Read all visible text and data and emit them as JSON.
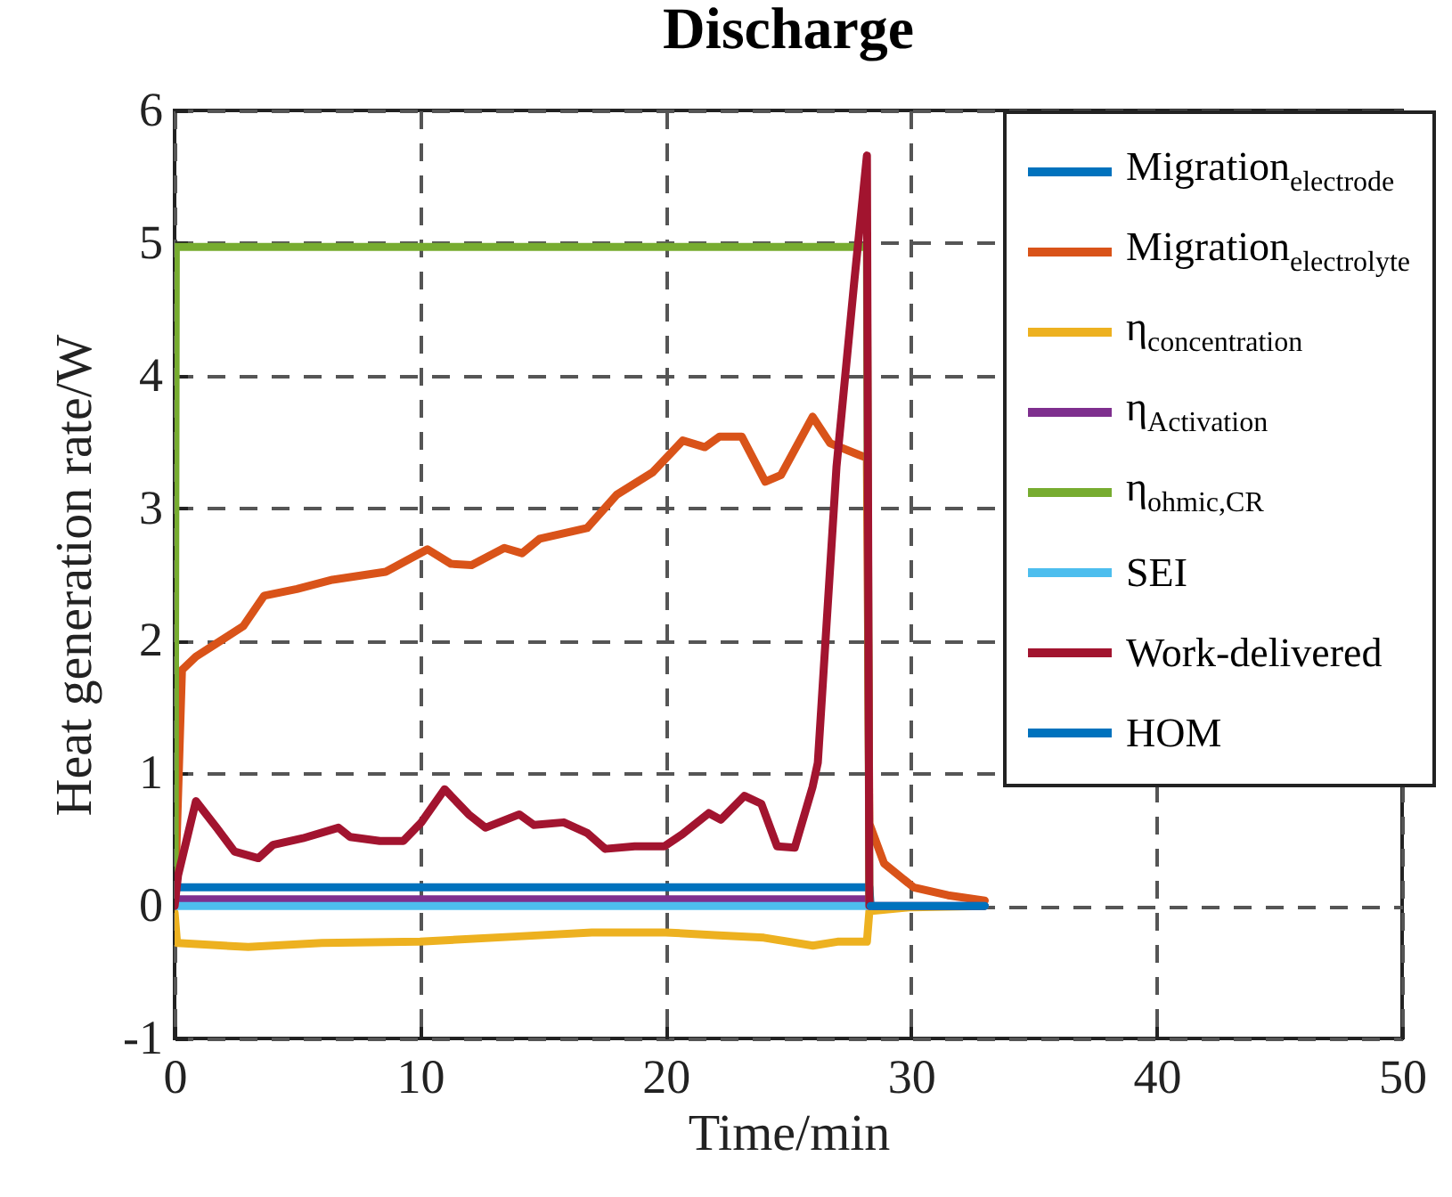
{
  "chart_data": {
    "type": "line",
    "title": "Discharge",
    "xlabel": "Time/min",
    "ylabel": "Heat generation rate/W",
    "xlim": [
      0,
      50
    ],
    "xticks": [
      0,
      10,
      20,
      30,
      40,
      50
    ],
    "ylim": [
      -1,
      6
    ],
    "yticks": [
      -1,
      0,
      1,
      2,
      3,
      4,
      5,
      6
    ],
    "grid": true,
    "legend": "top right",
    "marker": "none",
    "line_style": "solid",
    "series": [
      {
        "name": "Migration$_{electrode}$",
        "color": "#0072bd",
        "x": [
          0,
          0.05,
          28.3,
          28.35
        ],
        "values": [
          0,
          0.14,
          0.14,
          0
        ]
      },
      {
        "name": "Migration$_{electrolyte}$",
        "color": "#d95319",
        "x": [
          0,
          0.3,
          0.87,
          1.71,
          2.8,
          3.65,
          4.98,
          6.43,
          8.6,
          10.3,
          11.26,
          12.1,
          13.43,
          14.15,
          14.88,
          16.8,
          18.0,
          19.47,
          20.7,
          21.6,
          22.2,
          23.1,
          24.06,
          24.7,
          25.99,
          26.7,
          27.9,
          28.2,
          28.3,
          28.9,
          30.1,
          31.5,
          33.0
        ],
        "values": [
          0,
          1.78,
          1.88,
          1.98,
          2.11,
          2.34,
          2.39,
          2.46,
          2.52,
          2.69,
          2.58,
          2.57,
          2.7,
          2.66,
          2.77,
          2.85,
          3.1,
          3.27,
          3.51,
          3.46,
          3.54,
          3.54,
          3.2,
          3.25,
          3.69,
          3.49,
          3.4,
          3.38,
          0.62,
          0.32,
          0.14,
          0.08,
          0.04
        ]
      },
      {
        "name": "η$_{concentration}$",
        "color": "#edb120",
        "x": [
          0,
          0.1,
          3,
          6,
          10,
          14,
          17,
          20,
          22,
          24,
          26,
          27,
          28.2,
          28.3,
          30,
          33
        ],
        "values": [
          -0.05,
          -0.28,
          -0.31,
          -0.28,
          -0.27,
          -0.23,
          -0.2,
          -0.2,
          -0.22,
          -0.24,
          -0.3,
          -0.27,
          -0.27,
          -0.04,
          -0.01,
          0
        ]
      },
      {
        "name": "η$_{Activation}$",
        "color": "#7e2f8e",
        "x": [
          0,
          0.05,
          28.3,
          28.35,
          33
        ],
        "values": [
          0,
          0.05,
          0.05,
          0,
          0
        ]
      },
      {
        "name": "η$_{ohmic,CR}$",
        "color": "#77ac30",
        "x": [
          0,
          0.05,
          28.2,
          28.3
        ],
        "values": [
          0,
          4.97,
          4.97,
          0
        ]
      },
      {
        "name": "SEI",
        "color": "#4dbeee",
        "x": [
          0,
          28.35
        ],
        "values": [
          0,
          0
        ]
      },
      {
        "name": "Work-delivered",
        "color": "#a2142f",
        "x": [
          0,
          0.14,
          0.87,
          1.71,
          2.44,
          3.41,
          4.01,
          5.22,
          6.67,
          7.15,
          8.36,
          9.32,
          10.05,
          11.0,
          11.98,
          12.66,
          14.04,
          14.64,
          15.85,
          16.81,
          17.54,
          18.74,
          19.95,
          20.68,
          21.76,
          22.25,
          23.21,
          23.9,
          24.54,
          25.26,
          25.99,
          26.2,
          26.96,
          27.68,
          28.2,
          28.3
        ],
        "values": [
          0,
          0.23,
          0.79,
          0.59,
          0.41,
          0.36,
          0.46,
          0.51,
          0.59,
          0.52,
          0.49,
          0.49,
          0.63,
          0.88,
          0.69,
          0.59,
          0.69,
          0.61,
          0.63,
          0.55,
          0.43,
          0.45,
          0.45,
          0.54,
          0.7,
          0.65,
          0.83,
          0.77,
          0.45,
          0.44,
          0.9,
          1.08,
          3.31,
          4.7,
          5.66,
          0
        ]
      },
      {
        "name": "HOM",
        "color": "#0072bd",
        "x": [
          28.35,
          33
        ],
        "values": [
          0,
          0
        ]
      }
    ]
  }
}
